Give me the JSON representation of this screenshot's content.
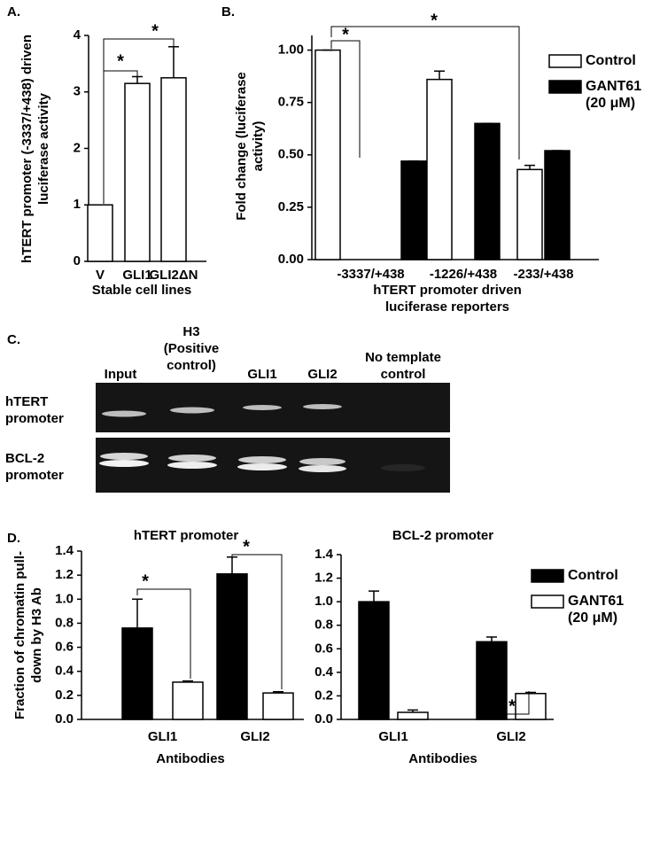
{
  "chart_data": [
    {
      "type": "bar",
      "panel": "A.",
      "ylabel": "hTERT promoter (-3337/+438) driven luciferase activity",
      "xlabel": "Stable cell lines",
      "categories": [
        "V",
        "GLI1",
        "GLI2ΔN"
      ],
      "series": [
        {
          "color": "#ffffff",
          "values": [
            1,
            3.15,
            3.25
          ],
          "errors": [
            0,
            0.12,
            0.55
          ]
        }
      ],
      "ylim": [
        0,
        4
      ],
      "yticks": [
        0,
        1,
        2,
        3,
        4
      ],
      "annotations": [
        "*",
        "*"
      ]
    },
    {
      "type": "bar",
      "panel": "B.",
      "ylabel": "Fold change (luciferase activity)",
      "xlabel": "hTERT promoter driven luciferase reporters",
      "categories": [
        "-3337/+438",
        "-1226/+438",
        "-233/+438"
      ],
      "series": [
        {
          "name": "Control",
          "color": "#ffffff",
          "values": [
            1.0,
            0.86,
            0.43
          ],
          "errors": [
            0,
            0.04,
            0.02
          ]
        },
        {
          "name": "GANT61 (20 μM)",
          "color": "#000000",
          "values": [
            0.47,
            0.65,
            0.52
          ],
          "errors": [
            0,
            0,
            0
          ]
        }
      ],
      "ylim": [
        0,
        1.07
      ],
      "yticks": [
        {
          "value": 0,
          "label": "0.00"
        },
        {
          "value": 0.25,
          "label": "0.25"
        },
        {
          "value": 0.5,
          "label": "0.50"
        },
        {
          "value": 0.75,
          "label": "0.75"
        },
        {
          "value": 1,
          "label": "1.00"
        }
      ],
      "legend": "upper right",
      "annotations": [
        "*",
        "*"
      ]
    },
    {
      "type": "bar",
      "panel": "D.",
      "title": "hTERT promoter",
      "ylabel": "Fraction of chromatin pull-down by H3 Ab",
      "xlabel": "Antibodies",
      "categories": [
        "GLI1",
        "GLI2"
      ],
      "series": [
        {
          "color": "#000000",
          "values": [
            0.76,
            1.21
          ],
          "errors": [
            0.24,
            0.14
          ]
        },
        {
          "color": "#ffffff",
          "values": [
            0.31,
            0.22
          ],
          "errors": [
            0.01,
            0.01
          ]
        }
      ],
      "ylim": [
        0,
        1.4
      ],
      "yticks": [
        {
          "value": 0,
          "label": "0.0"
        },
        0.2,
        0.4,
        0.6,
        0.8,
        {
          "value": 1,
          "label": "1.0"
        },
        1.2,
        1.4
      ],
      "annotations": [
        "*",
        "*"
      ]
    },
    {
      "type": "bar",
      "title": "BCL-2 promoter",
      "xlabel": "Antibodies",
      "categories": [
        "GLI1",
        "GLI2"
      ],
      "series": [
        {
          "name": "Control",
          "color": "#000000",
          "values": [
            1.0,
            0.66
          ],
          "errors": [
            0.09,
            0.04
          ]
        },
        {
          "name": "GANT61 (20 μM)",
          "color": "#ffffff",
          "values": [
            0.06,
            0.22
          ],
          "errors": [
            0.02,
            0.01
          ]
        }
      ],
      "ylim": [
        0,
        1.4
      ],
      "yticks": [
        {
          "value": 0,
          "label": "0.0"
        },
        0.2,
        0.4,
        0.6,
        0.8,
        {
          "value": 1,
          "label": "1.0"
        },
        1.2,
        1.4
      ],
      "legend": "upper right",
      "annotations": [
        "*"
      ]
    }
  ],
  "gel": {
    "panel": "C.",
    "lanes": [
      "Input",
      "H3 (Positive control)",
      "GLI1",
      "GLI2",
      "No template control"
    ],
    "rows": [
      "hTERT promoter",
      "BCL-2 promoter"
    ]
  }
}
